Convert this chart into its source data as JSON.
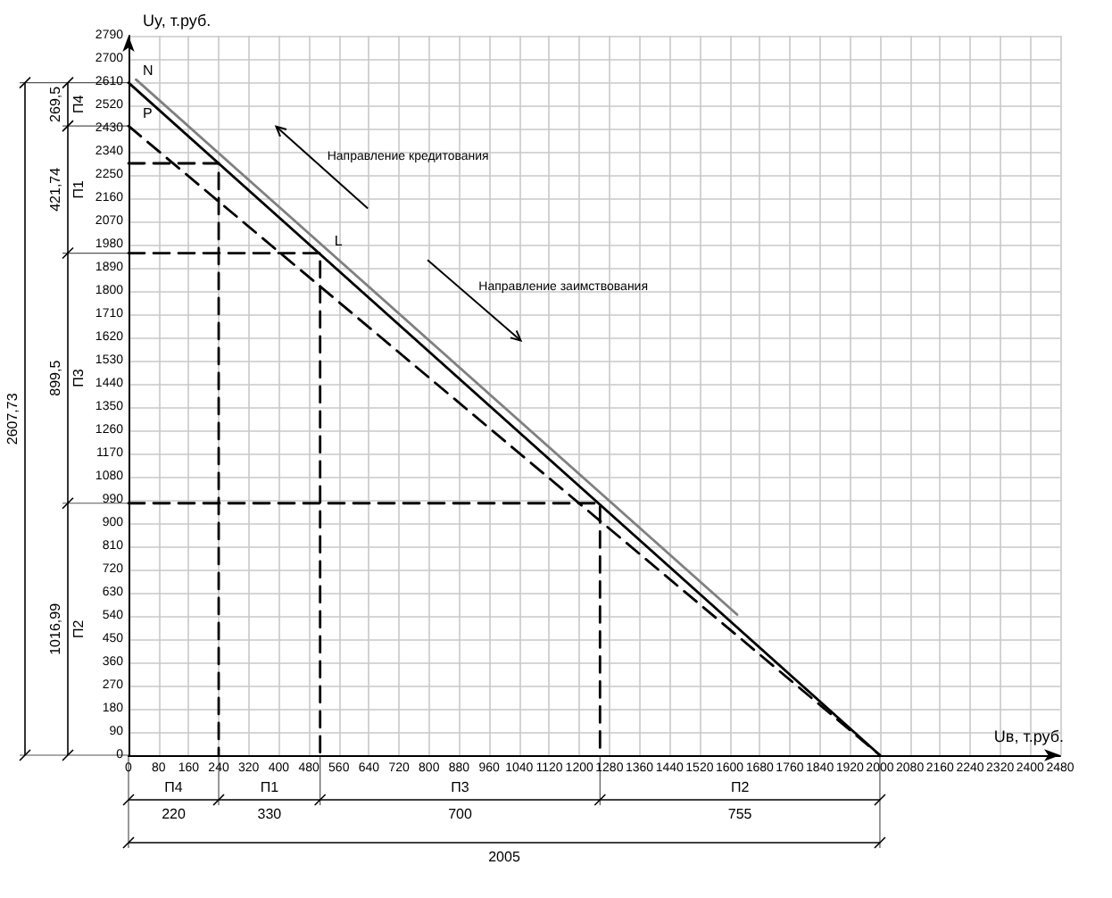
{
  "chart_data": {
    "type": "line",
    "xlabel": "Uв, т.руб.",
    "ylabel": "Uy, т.руб.",
    "xlim": [
      0,
      2480
    ],
    "ylim": [
      0,
      2790
    ],
    "xticks": [
      0,
      80,
      160,
      240,
      320,
      400,
      480,
      560,
      640,
      720,
      800,
      880,
      960,
      1040,
      1120,
      1200,
      1280,
      1360,
      1440,
      1520,
      1600,
      1680,
      1760,
      1840,
      1920,
      2000,
      2080,
      2160,
      2240,
      2320,
      2400,
      2480
    ],
    "yticks": [
      0,
      90,
      180,
      270,
      360,
      450,
      540,
      630,
      720,
      810,
      900,
      990,
      1080,
      1170,
      1260,
      1350,
      1440,
      1530,
      1620,
      1710,
      1800,
      1890,
      1980,
      2070,
      2160,
      2250,
      2340,
      2430,
      2520,
      2610,
      2700,
      2790
    ],
    "grid": true,
    "marker": "none",
    "series": [
      {
        "color": "#000000",
        "x": [
          0,
          2000
        ],
        "values": [
          2607.73,
          0
        ],
        "line_style": "solid"
      },
      {
        "color": "#808080",
        "x": [
          20,
          1620
        ],
        "values": [
          2620,
          545
        ],
        "line_style": "solid"
      },
      {
        "color": "#000000",
        "x": [
          0,
          2000
        ],
        "values": [
          2440,
          0
        ],
        "line_style": "dashed"
      },
      {
        "color": "#000000",
        "x": [
          0,
          240,
          240
        ],
        "values": [
          2295,
          2295,
          0
        ],
        "line_style": "dashed"
      },
      {
        "color": "#000000",
        "x": [
          0,
          510,
          510
        ],
        "values": [
          1947,
          1947,
          0
        ],
        "line_style": "dashed"
      },
      {
        "color": "#000000",
        "x": [
          0,
          1255,
          1255
        ],
        "values": [
          977,
          977,
          0
        ],
        "line_style": "dashed"
      }
    ],
    "annotations": [
      "N",
      "P",
      "L",
      "П4",
      "П1",
      "П3",
      "П2",
      "220",
      "330",
      "700",
      "755",
      "2005",
      "269,5",
      "421,74",
      "899,5",
      "1016,99",
      "П4",
      "П1",
      "П3",
      "П2",
      "2607,73",
      "Направление кредитования",
      "Направление заимствования"
    ]
  }
}
